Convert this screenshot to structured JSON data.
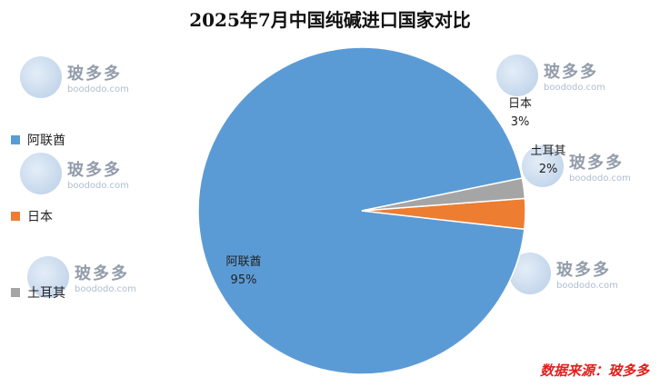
{
  "chart_data": {
    "type": "pie",
    "title": "2025年7月中国纯碱进口国家对比",
    "categories": [
      "阿联酋",
      "日本",
      "土耳其"
    ],
    "values": [
      95,
      3,
      2
    ],
    "value_labels": [
      "95%",
      "3%",
      "2%"
    ],
    "colors": [
      "#5b9bd5",
      "#ed7d31",
      "#a5a5a5"
    ],
    "legend": "left"
  },
  "watermark": {
    "name": "玻多多",
    "domain": "boododo.com"
  },
  "source": "数据来源：玻多多"
}
